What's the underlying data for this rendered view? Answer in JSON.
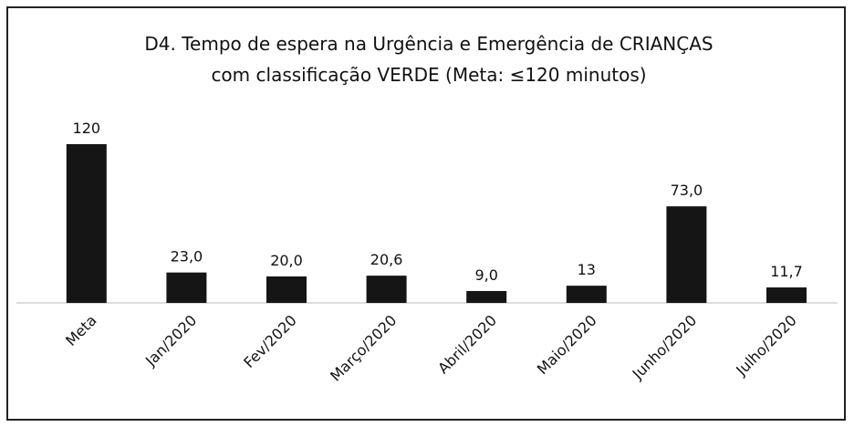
{
  "chart_data": {
    "type": "bar",
    "title": [
      "D4. Tempo de espera na Urgência e Emergência de CRIANÇAS",
      "com classificação VERDE (Meta: ≤120 minutos)"
    ],
    "categories": [
      "Meta",
      "Jan/2020",
      "Fev/2020",
      "Março/2020",
      "Abril/2020",
      "Maio/2020",
      "Junho/2020",
      "Julho/2020"
    ],
    "values": [
      120,
      23.0,
      20.0,
      20.6,
      9.0,
      13,
      73.0,
      11.7
    ],
    "value_labels": [
      "120",
      "23,0",
      "20,0",
      "20,6",
      "9,0",
      "13",
      "73,0",
      "11,7"
    ],
    "color": "#151515"
  }
}
